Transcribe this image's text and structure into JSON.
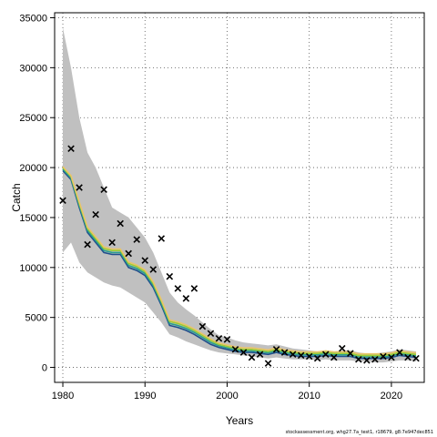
{
  "chart_data": {
    "type": "line",
    "xlabel": "Years",
    "ylabel": "Catch",
    "xlim": [
      1979,
      2024
    ],
    "ylim": [
      -1500,
      35500
    ],
    "xticks": [
      1980,
      1990,
      2000,
      2010,
      2020
    ],
    "yticks": [
      0,
      5000,
      10000,
      15000,
      20000,
      25000,
      30000,
      35000
    ],
    "grid": true,
    "years": [
      1980,
      1981,
      1982,
      1983,
      1984,
      1985,
      1986,
      1987,
      1988,
      1989,
      1990,
      1991,
      1992,
      1993,
      1994,
      1995,
      1996,
      1997,
      1998,
      1999,
      2000,
      2001,
      2002,
      2003,
      2004,
      2005,
      2006,
      2007,
      2008,
      2009,
      2010,
      2011,
      2012,
      2013,
      2014,
      2015,
      2016,
      2017,
      2018,
      2019,
      2020,
      2021,
      2022,
      2023
    ],
    "band_upper": [
      34000,
      30000,
      25000,
      21500,
      20000,
      18000,
      16000,
      15500,
      15000,
      14000,
      13000,
      11500,
      9500,
      7500,
      6500,
      5800,
      5200,
      4500,
      3800,
      3200,
      3000,
      2700,
      2500,
      2400,
      2300,
      2200,
      2300,
      2100,
      1900,
      1800,
      1700,
      1600,
      1700,
      1600,
      1700,
      1700,
      1500,
      1400,
      1400,
      1500,
      1600,
      1800,
      1700,
      1600
    ],
    "band_lower": [
      11500,
      12500,
      10500,
      9500,
      9000,
      8500,
      8200,
      8000,
      7500,
      7000,
      6500,
      5500,
      4500,
      3300,
      3000,
      2600,
      2300,
      2000,
      1700,
      1500,
      1400,
      1300,
      1200,
      1100,
      1000,
      900,
      1000,
      900,
      800,
      800,
      800,
      700,
      800,
      700,
      700,
      700,
      600,
      600,
      500,
      500,
      600,
      700,
      700,
      600
    ],
    "series": [
      {
        "color": "#1f4e8c",
        "values": [
          19700,
          18800,
          16000,
          13500,
          12500,
          11500,
          11300,
          11300,
          10000,
          9700,
          9200,
          8000,
          6200,
          4200,
          4000,
          3700,
          3300,
          2800,
          2300,
          2000,
          1800,
          1600,
          1500,
          1500,
          1400,
          1300,
          1500,
          1300,
          1200,
          1100,
          1100,
          1100,
          1200,
          1100,
          1100,
          1100,
          900,
          900,
          900,
          900,
          1000,
          1200,
          1100,
          1000
        ]
      },
      {
        "color": "#2a9d8f",
        "values": [
          19850,
          18950,
          16200,
          13700,
          12700,
          11700,
          11500,
          11500,
          10200,
          9900,
          9400,
          8200,
          6400,
          4400,
          4200,
          3900,
          3500,
          3000,
          2500,
          2150,
          1950,
          1750,
          1650,
          1650,
          1550,
          1450,
          1650,
          1450,
          1350,
          1250,
          1250,
          1250,
          1350,
          1250,
          1250,
          1250,
          1050,
          1050,
          1050,
          1050,
          1150,
          1350,
          1250,
          1150
        ]
      },
      {
        "color": "#9acd32",
        "values": [
          20000,
          19100,
          16400,
          13900,
          12900,
          11900,
          11700,
          11700,
          10400,
          10100,
          9600,
          8400,
          6600,
          4600,
          4400,
          4100,
          3700,
          3200,
          2700,
          2300,
          2100,
          1900,
          1800,
          1800,
          1700,
          1600,
          1800,
          1600,
          1500,
          1400,
          1400,
          1400,
          1500,
          1400,
          1400,
          1400,
          1200,
          1200,
          1200,
          1200,
          1300,
          1500,
          1400,
          1300
        ]
      },
      {
        "color": "#e9c46a",
        "values": [
          20100,
          19200,
          16550,
          14050,
          13050,
          12050,
          11850,
          11850,
          10550,
          10250,
          9750,
          8550,
          6750,
          4750,
          4550,
          4250,
          3850,
          3350,
          2850,
          2450,
          2250,
          2050,
          1950,
          1950,
          1850,
          1750,
          1950,
          1750,
          1650,
          1550,
          1550,
          1550,
          1650,
          1550,
          1550,
          1550,
          1350,
          1350,
          1350,
          1350,
          1450,
          1650,
          1550,
          1450
        ]
      }
    ],
    "observations": {
      "years": [
        1980,
        1981,
        1982,
        1983,
        1984,
        1985,
        1986,
        1987,
        1988,
        1989,
        1990,
        1991,
        1992,
        1993,
        1994,
        1995,
        1996,
        1997,
        1998,
        1999,
        2000,
        2001,
        2002,
        2003,
        2004,
        2005,
        2006,
        2007,
        2008,
        2009,
        2010,
        2011,
        2012,
        2013,
        2014,
        2015,
        2016,
        2017,
        2018,
        2019,
        2020,
        2021,
        2022,
        2023
      ],
      "values": [
        16700,
        21900,
        18000,
        12300,
        15300,
        17800,
        12500,
        14400,
        11400,
        12800,
        10700,
        9800,
        12900,
        9100,
        7900,
        6900,
        7900,
        4100,
        3400,
        2900,
        2800,
        1800,
        1500,
        1000,
        1300,
        400,
        1800,
        1500,
        1300,
        1200,
        1100,
        900,
        1300,
        1000,
        1900,
        1400,
        800,
        700,
        800,
        1100,
        1000,
        1500,
        1000,
        900
      ]
    }
  },
  "footer_text": "stockassessment.org, whg27.7a_test1, r18679, g8:7e947dec851"
}
